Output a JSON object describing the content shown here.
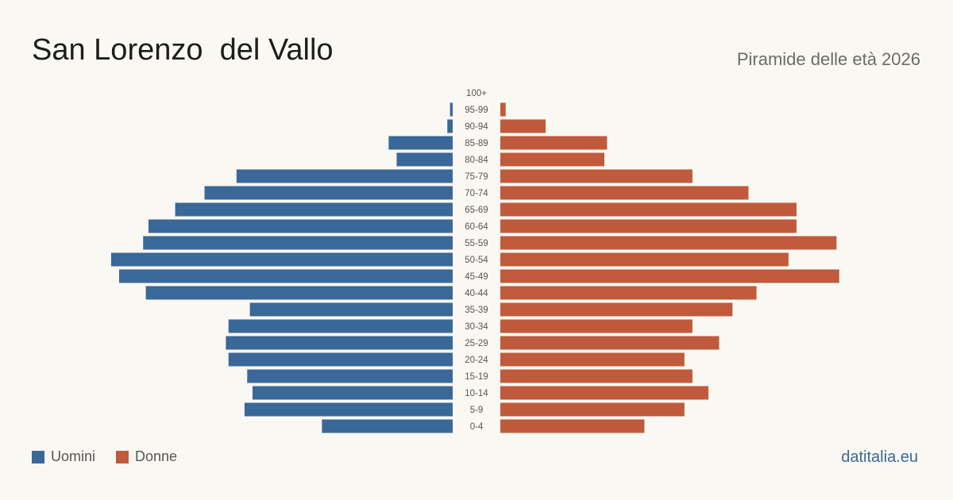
{
  "header": {
    "title": "San Lorenzo  del Vallo",
    "subtitle": "Piramide delle età 2026"
  },
  "legend": {
    "men_label": "Uomini",
    "women_label": "Donne"
  },
  "brand": "datitalia.eu",
  "colors": {
    "men": "#3a6898",
    "women": "#bf5b3c"
  },
  "chart_data": {
    "type": "bar",
    "orientation": "horizontal-pyramid",
    "categories": [
      "100+",
      "95-99",
      "90-94",
      "85-89",
      "80-84",
      "75-79",
      "70-74",
      "65-69",
      "60-64",
      "55-59",
      "50-54",
      "45-49",
      "40-44",
      "35-39",
      "30-34",
      "25-29",
      "20-24",
      "15-19",
      "10-14",
      "5-9",
      "0-4"
    ],
    "series": [
      {
        "name": "Uomini",
        "values": [
          0,
          1,
          2,
          24,
          21,
          81,
          93,
          104,
          114,
          116,
          128,
          125,
          115,
          76,
          84,
          85,
          84,
          77,
          75,
          78,
          49
        ]
      },
      {
        "name": "Donne",
        "values": [
          0,
          2,
          17,
          40,
          39,
          72,
          93,
          111,
          111,
          126,
          108,
          127,
          96,
          87,
          72,
          82,
          69,
          72,
          78,
          69,
          54
        ]
      }
    ]
  }
}
